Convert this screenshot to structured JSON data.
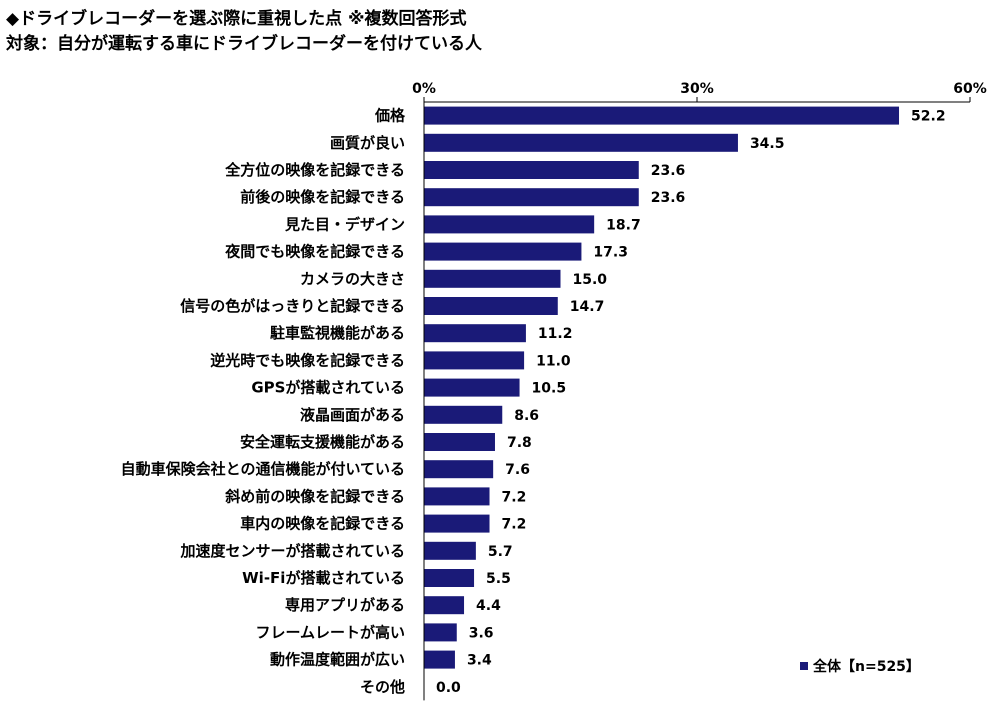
{
  "header": {
    "title": "◆ドライブレコーダーを選ぶ際に重視した点 ※複数回答形式",
    "subtitle": "対象：自分が運転する車にドライブレコーダーを付けている人"
  },
  "colors": {
    "bar": "#1a1a78",
    "axis": "#000000",
    "text": "#000000"
  },
  "chart_data": {
    "type": "bar",
    "orientation": "horizontal",
    "categories": [
      "価格",
      "画質が良い",
      "全方位の映像を記録できる",
      "前後の映像を記録できる",
      "見た目・デザイン",
      "夜間でも映像を記録できる",
      "カメラの大きさ",
      "信号の色がはっきりと記録できる",
      "駐車監視機能がある",
      "逆光時でも映像を記録できる",
      "GPSが搭載されている",
      "液晶画面がある",
      "安全運転支援機能がある",
      "自動車保険会社との通信機能が付いている",
      "斜め前の映像を記録できる",
      "車内の映像を記録できる",
      "加速度センサーが搭載されている",
      "Wi-Fiが搭載されている",
      "専用アプリがある",
      "フレームレートが高い",
      "動作温度範囲が広い",
      "その他"
    ],
    "series": [
      {
        "name": "全体【n=525】",
        "values": [
          52.2,
          34.5,
          23.6,
          23.6,
          18.7,
          17.3,
          15.0,
          14.7,
          11.2,
          11.0,
          10.5,
          8.6,
          7.8,
          7.6,
          7.2,
          7.2,
          5.7,
          5.5,
          4.4,
          3.6,
          3.4,
          0.0
        ]
      }
    ],
    "value_labels": [
      "52.2",
      "34.5",
      "23.6",
      "23.6",
      "18.7",
      "17.3",
      "15.0",
      "14.7",
      "11.2",
      "11.0",
      "10.5",
      "8.6",
      "7.8",
      "7.6",
      "7.2",
      "7.2",
      "5.7",
      "5.5",
      "4.4",
      "3.6",
      "3.4",
      "0.0"
    ],
    "xlim": [
      0,
      60
    ],
    "ticks": [
      0,
      30,
      60
    ],
    "tick_labels": [
      "0%",
      "30%",
      "60%"
    ],
    "grid": false,
    "legend_position": "bottom-right"
  }
}
